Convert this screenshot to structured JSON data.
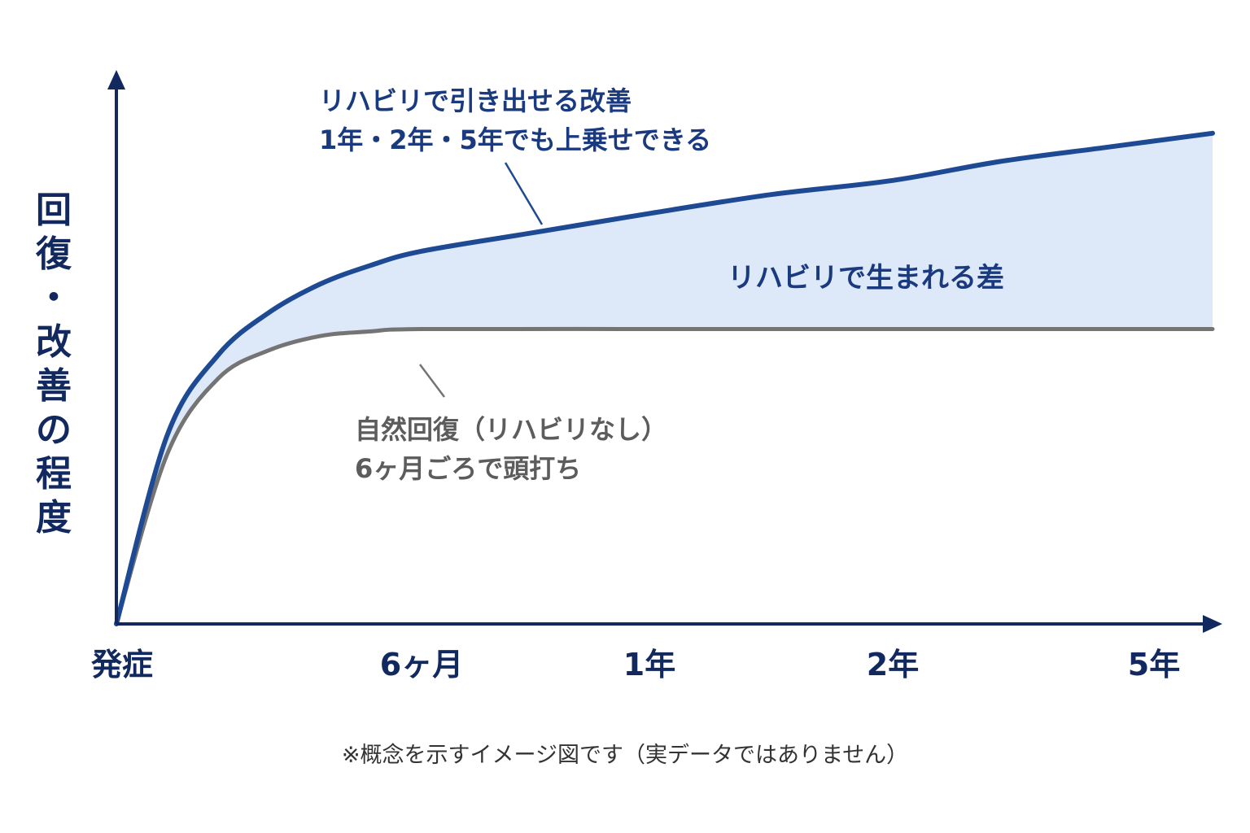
{
  "chart_data": {
    "type": "line",
    "ylabel": "回復・改善の程度",
    "x_ticks": [
      {
        "label": "発症",
        "x": 0
      },
      {
        "label": "6ヶ月",
        "x": 6
      },
      {
        "label": "1年",
        "x": 12
      },
      {
        "label": "2年",
        "x": 24
      },
      {
        "label": "5年",
        "x": 60
      }
    ],
    "x_scale": "nonlinear",
    "series": [
      {
        "key": "rehab",
        "color": "#1e4a94",
        "points": [
          [
            0,
            0
          ],
          [
            1,
            0.4
          ],
          [
            2,
            0.57
          ],
          [
            3,
            0.66
          ],
          [
            4,
            0.72
          ],
          [
            5,
            0.76
          ],
          [
            6,
            0.79
          ],
          [
            9,
            0.83
          ],
          [
            12,
            0.87
          ],
          [
            18,
            0.91
          ],
          [
            24,
            0.94
          ],
          [
            36,
            0.98
          ],
          [
            48,
            1.01
          ],
          [
            60,
            1.04
          ]
        ]
      },
      {
        "key": "natural",
        "color": "#747474",
        "points": [
          [
            0,
            0
          ],
          [
            1,
            0.36
          ],
          [
            2,
            0.52
          ],
          [
            3,
            0.58
          ],
          [
            4,
            0.61
          ],
          [
            5,
            0.62
          ],
          [
            6,
            0.625
          ],
          [
            12,
            0.625
          ],
          [
            24,
            0.625
          ],
          [
            60,
            0.625
          ]
        ]
      }
    ],
    "fill_between": {
      "color": "#dde8f8"
    },
    "annotations": {
      "rehab_line1": "リハビリで引き出せる改善",
      "rehab_line2": "1年・2年・5年でも上乗せできる",
      "gap": "リハビリで生まれる差",
      "natural_line1": "自然回復（リハビリなし）",
      "natural_line2": "6ヶ月ごろで頭打ち"
    },
    "ylim": [
      0,
      1.15
    ],
    "xlim": [
      0,
      60
    ]
  },
  "note": "※概念を示すイメージ図です（実データではありません）"
}
